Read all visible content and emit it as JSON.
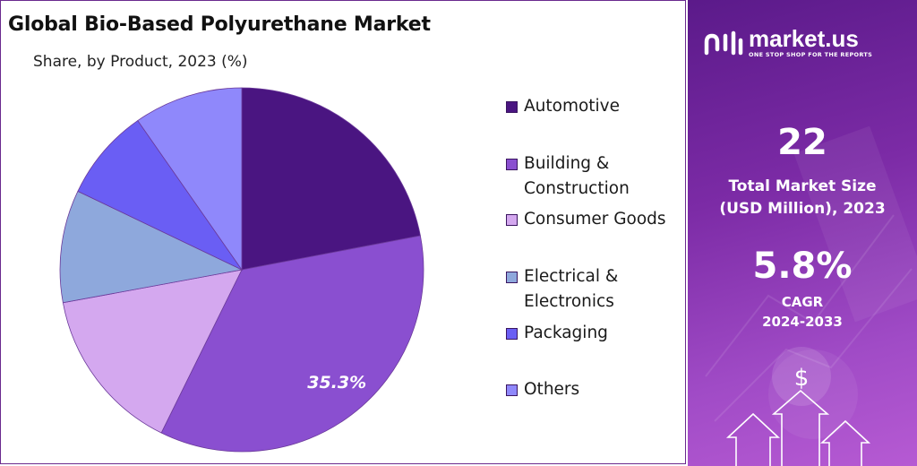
{
  "chart_data": {
    "type": "pie",
    "title": "Global Bio-Based Polyurethane Market",
    "subtitle": "Share, by Product, 2023 (%)",
    "slices": [
      {
        "name": "Automotive",
        "value": 22.0,
        "color": "#4a1581"
      },
      {
        "name": "Building & Construction",
        "value": 35.3,
        "color": "#8a4fd0",
        "label": "35.3%"
      },
      {
        "name": "Consumer Goods",
        "value": 14.8,
        "color": "#d4a8ef"
      },
      {
        "name": "Electrical & Electronics",
        "value": 10.0,
        "color": "#8ea8dc"
      },
      {
        "name": "Packaging",
        "value": 8.2,
        "color": "#6a5ef4"
      },
      {
        "name": "Others",
        "value": 9.7,
        "color": "#8f88fb"
      }
    ],
    "legend": [
      {
        "lines": [
          "Automotive"
        ],
        "color": "#4a1581"
      },
      {
        "lines": [
          "Building &",
          "Construction"
        ],
        "color": "#8a4fd0"
      },
      {
        "lines": [
          "Consumer Goods"
        ],
        "color": "#d4a8ef"
      },
      {
        "lines": [
          "Electrical &",
          "Electronics"
        ],
        "color": "#8ea8dc"
      },
      {
        "lines": [
          "Packaging"
        ],
        "color": "#6a5ef4"
      },
      {
        "lines": [
          "Others"
        ],
        "color": "#8f88fb"
      }
    ],
    "legend_placement": "right"
  },
  "brand": {
    "name": "market.us",
    "tagline": "ONE STOP SHOP FOR THE REPORTS"
  },
  "stats": {
    "market_size_value": "22",
    "market_size_label_1": "Total Market Size",
    "market_size_label_2": "(USD Million), 2023",
    "cagr_value": "5.8%",
    "cagr_label_1": "CAGR",
    "cagr_label_2": "2024-2033"
  },
  "icons": {
    "dollar_symbol": "$"
  }
}
